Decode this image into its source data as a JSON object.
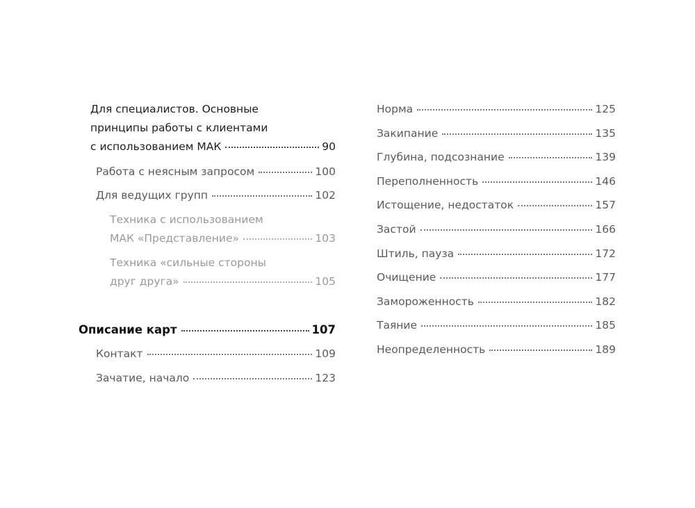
{
  "left": [
    {
      "lines": [
        "Для специалистов. Основные",
        "принципы работы с клиентами",
        "с использованием МАК"
      ],
      "page": "90",
      "level": 1
    },
    {
      "lines": [
        "Работа с неясным запросом"
      ],
      "page": "100",
      "level": 2
    },
    {
      "lines": [
        "Для ведущих групп"
      ],
      "page": "102",
      "level": 2
    },
    {
      "lines": [
        "Техника с использованием",
        "МАК «Представление»"
      ],
      "page": "103",
      "level": 3
    },
    {
      "lines": [
        "Техника «сильные стороны",
        "друг друга»"
      ],
      "page": "105",
      "level": 3
    },
    {
      "lines": [
        "Описание карт"
      ],
      "page": "107",
      "level": 0
    },
    {
      "lines": [
        "Контакт"
      ],
      "page": "109",
      "level": 2
    },
    {
      "lines": [
        "Зачатие, начало"
      ],
      "page": "123",
      "level": 2
    }
  ],
  "right": [
    {
      "lines": [
        "Норма"
      ],
      "page": "125"
    },
    {
      "lines": [
        "Закипание"
      ],
      "page": "135"
    },
    {
      "lines": [
        "Глубина, подсознание"
      ],
      "page": "139"
    },
    {
      "lines": [
        "Переполненность"
      ],
      "page": "146"
    },
    {
      "lines": [
        "Истощение, недостаток"
      ],
      "page": "157"
    },
    {
      "lines": [
        "Застой"
      ],
      "page": "166"
    },
    {
      "lines": [
        "Штиль, пауза"
      ],
      "page": "172"
    },
    {
      "lines": [
        "Очищение"
      ],
      "page": "177"
    },
    {
      "lines": [
        "Замороженность"
      ],
      "page": "182"
    },
    {
      "lines": [
        "Таяние"
      ],
      "page": "185"
    },
    {
      "lines": [
        "Неопределенность"
      ],
      "page": "189"
    }
  ]
}
